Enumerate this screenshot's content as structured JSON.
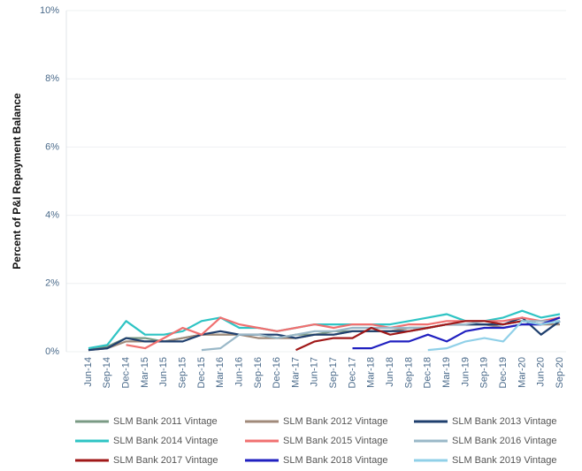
{
  "chart_data": {
    "type": "line",
    "y_label": "Percent of P&I Repayment  Balance",
    "categories": [
      "Jun-14",
      "Sep-14",
      "Dec-14",
      "Mar-15",
      "Jun-15",
      "Sep-15",
      "Dec-15",
      "Mar-16",
      "Jun-16",
      "Sep-16",
      "Dec-16",
      "Mar-17",
      "Jun-17",
      "Sep-17",
      "Dec-17",
      "Mar-18",
      "Jun-18",
      "Sep-18",
      "Dec-18",
      "Mar-19",
      "Jun-19",
      "Sep-19",
      "Dec-19",
      "Mar-20",
      "Jun-20",
      "Sep-20"
    ],
    "ylim": [
      0,
      10
    ],
    "yticks": [
      {
        "value": 0,
        "label": "0%"
      },
      {
        "value": 2,
        "label": "2%"
      },
      {
        "value": 4,
        "label": "4%"
      },
      {
        "value": 6,
        "label": "6%"
      },
      {
        "value": 8,
        "label": "8%"
      },
      {
        "value": 10,
        "label": "10%"
      }
    ],
    "grid": true,
    "legend": "bottom",
    "series": [
      {
        "name": "SLM Bank 2011 Vintage",
        "color": "#7a9a84",
        "values": [
          0.05,
          0.15,
          0.4,
          0.4,
          0.3,
          0.4,
          0.5,
          0.5,
          0.5,
          0.5,
          0.4,
          0.5,
          0.5,
          0.6,
          0.6,
          0.6,
          0.6,
          0.7,
          0.7,
          0.8,
          0.8,
          0.8,
          0.8,
          0.9,
          0.8,
          0.9
        ]
      },
      {
        "name": "SLM Bank 2012 Vintage",
        "color": "#a08a7a",
        "values": [
          0.05,
          0.1,
          0.3,
          0.3,
          0.3,
          0.4,
          0.5,
          0.5,
          0.5,
          0.4,
          0.4,
          0.4,
          0.5,
          0.5,
          0.6,
          0.6,
          0.6,
          0.7,
          0.7,
          0.8,
          0.8,
          0.8,
          0.7,
          0.8,
          0.8,
          0.8
        ]
      },
      {
        "name": "SLM Bank 2013 Vintage",
        "color": "#1f3f6e",
        "values": [
          0.05,
          0.1,
          0.4,
          0.3,
          0.3,
          0.3,
          0.5,
          0.6,
          0.5,
          0.5,
          0.5,
          0.4,
          0.5,
          0.5,
          0.6,
          0.6,
          0.6,
          0.6,
          0.7,
          0.8,
          0.8,
          0.8,
          0.8,
          1.0,
          0.5,
          0.9
        ]
      },
      {
        "name": "SLM Bank 2014 Vintage",
        "color": "#2ec4c4",
        "values": [
          0.1,
          0.2,
          0.9,
          0.5,
          0.5,
          0.6,
          0.9,
          1.0,
          0.7,
          0.7,
          0.6,
          0.7,
          0.8,
          0.8,
          0.8,
          0.8,
          0.8,
          0.9,
          1.0,
          1.1,
          0.9,
          0.9,
          1.0,
          1.2,
          1.0,
          1.1
        ]
      },
      {
        "name": "SLM Bank 2015 Vintage",
        "color": "#f07070",
        "values": [
          null,
          null,
          0.2,
          0.1,
          0.4,
          0.7,
          0.5,
          1.0,
          0.8,
          0.7,
          0.6,
          0.7,
          0.8,
          0.7,
          0.8,
          0.8,
          0.7,
          0.8,
          0.8,
          0.9,
          0.9,
          0.9,
          0.9,
          1.0,
          0.9,
          1.0
        ]
      },
      {
        "name": "SLM Bank 2016 Vintage",
        "color": "#9ab8c8",
        "values": [
          null,
          null,
          null,
          null,
          null,
          null,
          0.05,
          0.1,
          0.5,
          0.5,
          0.4,
          0.5,
          0.6,
          0.6,
          0.7,
          0.7,
          0.7,
          0.7,
          0.7,
          0.8,
          0.8,
          0.9,
          0.8,
          0.9,
          0.9,
          0.9
        ]
      },
      {
        "name": "SLM Bank 2017 Vintage",
        "color": "#a01818",
        "values": [
          null,
          null,
          null,
          null,
          null,
          null,
          null,
          null,
          null,
          null,
          null,
          0.05,
          0.3,
          0.4,
          0.4,
          0.7,
          0.5,
          0.6,
          0.7,
          0.8,
          0.9,
          0.9,
          0.8,
          0.9,
          0.8,
          1.0
        ]
      },
      {
        "name": "SLM Bank 2018 Vintage",
        "color": "#2020c0",
        "values": [
          null,
          null,
          null,
          null,
          null,
          null,
          null,
          null,
          null,
          null,
          null,
          null,
          null,
          null,
          0.1,
          0.1,
          0.3,
          0.3,
          0.5,
          0.3,
          0.6,
          0.7,
          0.7,
          0.8,
          0.8,
          1.0
        ]
      },
      {
        "name": "SLM Bank 2019 Vintage",
        "color": "#90d0e8",
        "values": [
          null,
          null,
          null,
          null,
          null,
          null,
          null,
          null,
          null,
          null,
          null,
          null,
          null,
          null,
          null,
          null,
          null,
          null,
          0.05,
          0.1,
          0.3,
          0.4,
          0.3,
          0.9,
          0.8,
          0.9
        ]
      }
    ]
  }
}
